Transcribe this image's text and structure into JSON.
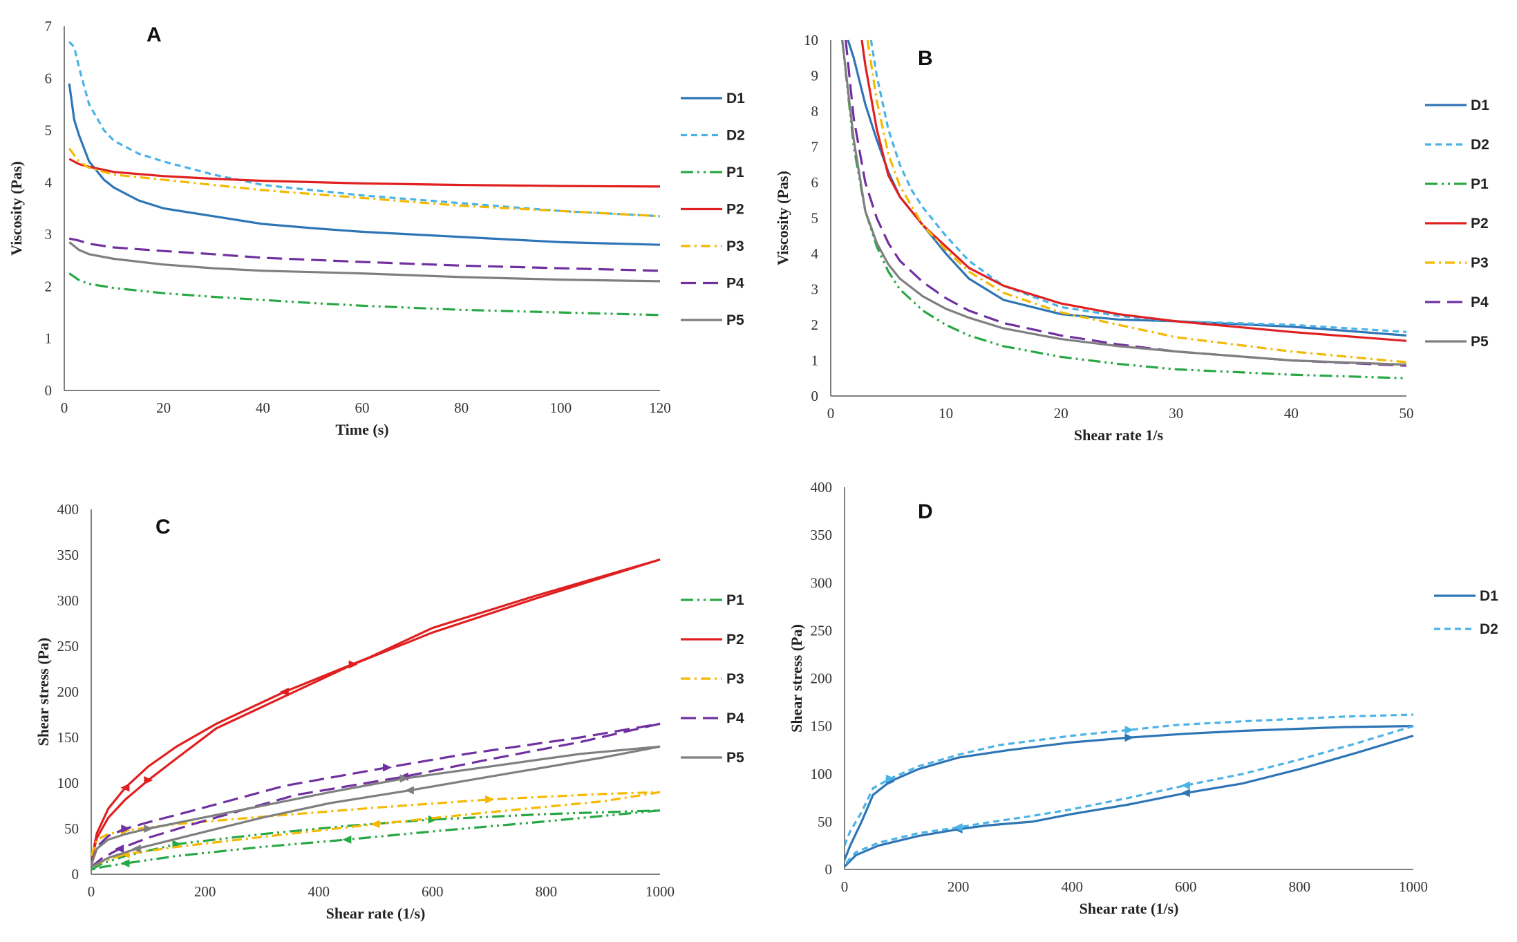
{
  "chart_data": [
    {
      "panel": "A",
      "type": "line",
      "xlabel": "Time (s)",
      "ylabel": "Viscosity (Pas)",
      "xlim": [
        0,
        120
      ],
      "ylim": [
        0,
        7
      ],
      "xticks": [
        "0",
        "20",
        "40",
        "60",
        "80",
        "100",
        "120"
      ],
      "yticks": [
        "0",
        "1",
        "2",
        "3",
        "4",
        "5",
        "6",
        "7"
      ],
      "legend_position": "right",
      "series": [
        {
          "name": "D1",
          "color": "#2e75b6",
          "dash": "solid",
          "x": [
            1,
            2,
            3,
            5,
            8,
            10,
            15,
            20,
            30,
            40,
            50,
            60,
            80,
            100,
            120
          ],
          "y": [
            5.9,
            5.2,
            4.9,
            4.4,
            4.05,
            3.9,
            3.65,
            3.5,
            3.35,
            3.2,
            3.12,
            3.05,
            2.95,
            2.85,
            2.8
          ]
        },
        {
          "name": "D2",
          "color": "#4ab3e6",
          "dash": "dashed",
          "x": [
            1,
            2,
            3,
            5,
            8,
            10,
            15,
            20,
            30,
            40,
            50,
            60,
            80,
            100,
            120
          ],
          "y": [
            6.7,
            6.6,
            6.2,
            5.5,
            5.0,
            4.8,
            4.55,
            4.4,
            4.15,
            3.95,
            3.85,
            3.75,
            3.6,
            3.45,
            3.35
          ]
        },
        {
          "name": "P1",
          "color": "#27a844",
          "dash": "dash-dot-dot",
          "x": [
            1,
            3,
            5,
            10,
            15,
            20,
            30,
            40,
            50,
            60,
            80,
            100,
            120
          ],
          "y": [
            2.25,
            2.12,
            2.05,
            1.97,
            1.92,
            1.87,
            1.8,
            1.74,
            1.68,
            1.63,
            1.55,
            1.5,
            1.45
          ]
        },
        {
          "name": "P2",
          "color": "#e02020",
          "dash": "solid",
          "x": [
            1,
            3,
            5,
            10,
            20,
            30,
            40,
            60,
            80,
            100,
            120
          ],
          "y": [
            4.45,
            4.35,
            4.3,
            4.2,
            4.12,
            4.07,
            4.03,
            3.98,
            3.95,
            3.93,
            3.92
          ]
        },
        {
          "name": "P3",
          "color": "#f5b800",
          "dash": "dash-dot",
          "x": [
            1,
            3,
            5,
            10,
            20,
            30,
            40,
            60,
            80,
            100,
            120
          ],
          "y": [
            4.65,
            4.4,
            4.28,
            4.15,
            4.05,
            3.95,
            3.85,
            3.7,
            3.55,
            3.45,
            3.35
          ]
        },
        {
          "name": "P4",
          "color": "#7030a0",
          "dash": "long-dash",
          "x": [
            1,
            3,
            5,
            10,
            20,
            30,
            40,
            60,
            80,
            100,
            120
          ],
          "y": [
            2.92,
            2.88,
            2.82,
            2.75,
            2.68,
            2.62,
            2.55,
            2.47,
            2.4,
            2.35,
            2.3
          ]
        },
        {
          "name": "P5",
          "color": "#7f7f7f",
          "dash": "solid",
          "x": [
            1,
            3,
            5,
            10,
            20,
            30,
            40,
            60,
            80,
            100,
            120
          ],
          "y": [
            2.85,
            2.7,
            2.62,
            2.53,
            2.42,
            2.35,
            2.3,
            2.25,
            2.18,
            2.13,
            2.1
          ]
        }
      ]
    },
    {
      "panel": "B",
      "type": "line",
      "xlabel": "Shear rate 1/s",
      "ylabel": "Viscosity (Pas)",
      "xlim": [
        0,
        50
      ],
      "ylim": [
        0,
        10
      ],
      "xticks": [
        "0",
        "10",
        "20",
        "30",
        "40",
        "50"
      ],
      "yticks": [
        "0",
        "1",
        "2",
        "3",
        "4",
        "5",
        "6",
        "7",
        "8",
        "9",
        "10"
      ],
      "legend_position": "right",
      "series": [
        {
          "name": "D1",
          "color": "#2e75b6",
          "dash": "solid",
          "x": [
            1.5,
            2,
            3,
            4,
            5,
            6,
            7,
            8,
            10,
            12,
            15,
            20,
            25,
            30,
            40,
            50
          ],
          "y": [
            10,
            9.5,
            8.2,
            7.2,
            6.3,
            5.6,
            5.2,
            4.8,
            4.0,
            3.3,
            2.7,
            2.3,
            2.15,
            2.1,
            1.95,
            1.7
          ]
        },
        {
          "name": "D2",
          "color": "#4ab3e6",
          "dash": "dashed",
          "x": [
            3.5,
            4,
            5,
            6,
            7,
            8,
            10,
            12,
            15,
            20,
            25,
            30,
            40,
            50
          ],
          "y": [
            10,
            9.0,
            7.5,
            6.5,
            5.8,
            5.3,
            4.5,
            3.8,
            3.1,
            2.5,
            2.25,
            2.1,
            2.0,
            1.8
          ]
        },
        {
          "name": "P1",
          "color": "#27a844",
          "dash": "dash-dot-dot",
          "x": [
            1,
            2,
            3,
            4,
            5,
            6,
            8,
            10,
            12,
            15,
            20,
            25,
            30,
            40,
            50
          ],
          "y": [
            10,
            7.0,
            5.2,
            4.2,
            3.5,
            3.0,
            2.4,
            2.0,
            1.7,
            1.4,
            1.1,
            0.9,
            0.75,
            0.6,
            0.5
          ]
        },
        {
          "name": "P2",
          "color": "#e02020",
          "dash": "solid",
          "x": [
            2.7,
            3,
            4,
            5,
            6,
            8,
            10,
            12,
            15,
            20,
            25,
            30,
            40,
            50
          ],
          "y": [
            10,
            9.3,
            7.5,
            6.2,
            5.6,
            4.8,
            4.2,
            3.6,
            3.1,
            2.6,
            2.3,
            2.1,
            1.8,
            1.55
          ]
        },
        {
          "name": "P3",
          "color": "#f5b800",
          "dash": "dash-dot",
          "x": [
            3.2,
            4,
            5,
            6,
            8,
            10,
            12,
            15,
            20,
            25,
            30,
            40,
            50
          ],
          "y": [
            10,
            8.3,
            6.8,
            5.9,
            4.8,
            4.1,
            3.5,
            2.9,
            2.35,
            2.0,
            1.65,
            1.25,
            0.95
          ]
        },
        {
          "name": "P4",
          "color": "#7030a0",
          "dash": "long-dash",
          "x": [
            1.3,
            2,
            3,
            4,
            5,
            6,
            8,
            10,
            12,
            15,
            20,
            25,
            30,
            40,
            50
          ],
          "y": [
            10,
            7.8,
            6.0,
            5.0,
            4.3,
            3.8,
            3.2,
            2.75,
            2.4,
            2.05,
            1.7,
            1.45,
            1.25,
            1.0,
            0.85
          ]
        },
        {
          "name": "P5",
          "color": "#7f7f7f",
          "dash": "solid",
          "x": [
            1,
            2,
            3,
            4,
            5,
            6,
            8,
            10,
            12,
            15,
            20,
            25,
            30,
            40,
            50
          ],
          "y": [
            10,
            7.2,
            5.2,
            4.3,
            3.7,
            3.3,
            2.8,
            2.45,
            2.2,
            1.9,
            1.6,
            1.4,
            1.25,
            1.0,
            0.88
          ]
        }
      ]
    },
    {
      "panel": "C",
      "type": "line",
      "xlabel": "Shear rate (1/s)",
      "ylabel": "Shear stress (Pa)",
      "xlim": [
        0,
        1000
      ],
      "ylim": [
        0,
        400
      ],
      "xticks": [
        "0",
        "200",
        "400",
        "600",
        "800",
        "1000"
      ],
      "yticks": [
        "0",
        "50",
        "100",
        "150",
        "200",
        "250",
        "300",
        "350",
        "400"
      ],
      "legend_position": "right",
      "series": [
        {
          "name": "P1",
          "color": "#27a844",
          "dash": "dash-dot-dot",
          "up": {
            "x": [
              0,
              20,
              60,
              150,
              300,
              450,
              600,
              800,
              1000
            ],
            "y": [
              5,
              12,
              20,
              33,
              44,
              53,
              60,
              66,
              70
            ]
          },
          "down": {
            "x": [
              1000,
              800,
              600,
              450,
              300,
              150,
              60,
              20,
              0
            ],
            "y": [
              70,
              58,
              47,
              38,
              30,
              20,
              12,
              8,
              5
            ]
          }
        },
        {
          "name": "P2",
          "color": "#e02020",
          "dash": "solid",
          "up": {
            "x": [
              0,
              10,
              30,
              60,
              100,
              150,
              220,
              340,
              460,
              600,
              780,
              1000
            ],
            "y": [
              15,
              40,
              62,
              82,
              103,
              127,
              160,
              195,
              230,
              265,
              302,
              345
            ]
          },
          "down": {
            "x": [
              1000,
              780,
              600,
              490,
              340,
              220,
              150,
              100,
              60,
              30,
              10,
              0
            ],
            "y": [
              345,
              305,
              270,
              238,
              200,
              165,
              140,
              118,
              95,
              72,
              45,
              15
            ]
          }
        },
        {
          "name": "P3",
          "color": "#f5b800",
          "dash": "dash-dot",
          "up": {
            "x": [
              0,
              10,
              30,
              60,
              150,
              300,
              500,
              700,
              900,
              1000
            ],
            "y": [
              20,
              38,
              44,
              48,
              55,
              63,
              73,
              82,
              88,
              90
            ]
          },
          "down": {
            "x": [
              1000,
              900,
              700,
              500,
              330,
              150,
              60,
              20,
              0
            ],
            "y": [
              90,
              80,
              68,
              55,
              43,
              30,
              22,
              14,
              8
            ]
          }
        },
        {
          "name": "P4",
          "color": "#7030a0",
          "dash": "long-dash",
          "up": {
            "x": [
              0,
              10,
              30,
              60,
              100,
              180,
              340,
              520,
              660,
              860,
              1000
            ],
            "y": [
              10,
              30,
              42,
              50,
              57,
              70,
              97,
              117,
              132,
              150,
              165
            ]
          },
          "down": {
            "x": [
              1000,
              860,
              700,
              550,
              360,
              190,
              100,
              50,
              20,
              0
            ],
            "y": [
              165,
              145,
              126,
              107,
              87,
              57,
              40,
              28,
              18,
              8
            ]
          }
        },
        {
          "name": "P5",
          "color": "#7f7f7f",
          "dash": "solid",
          "up": {
            "x": [
              0,
              10,
              30,
              60,
              100,
              180,
              300,
              420,
              550,
              700,
              860,
              1000
            ],
            "y": [
              10,
              28,
              38,
              44,
              50,
              60,
              75,
              90,
              105,
              118,
              132,
              140
            ]
          },
          "down": {
            "x": [
              1000,
              900,
              700,
              560,
              420,
              300,
              170,
              80,
              30,
              0
            ],
            "y": [
              140,
              128,
              107,
              92,
              78,
              62,
              42,
              28,
              18,
              8
            ]
          }
        }
      ]
    },
    {
      "panel": "D",
      "type": "line",
      "xlabel": "Shear rate (1/s)",
      "ylabel": "Shear stress (Pa)",
      "xlim": [
        0,
        1000
      ],
      "ylim": [
        0,
        400
      ],
      "xticks": [
        "0",
        "200",
        "400",
        "600",
        "800",
        "1000"
      ],
      "yticks": [
        "0",
        "50",
        "100",
        "150",
        "200",
        "250",
        "300",
        "350",
        "400"
      ],
      "legend_position": "right",
      "series": [
        {
          "name": "D1",
          "color": "#2e75b6",
          "dash": "solid",
          "up": {
            "x": [
              0,
              10,
              30,
              50,
              80,
              130,
              200,
              290,
              400,
              500,
              600,
              700,
              880,
              1000
            ],
            "y": [
              10,
              25,
              50,
              78,
              92,
              105,
              117,
              125,
              133,
              138,
              142,
              145,
              149,
              150
            ]
          },
          "down": {
            "x": [
              1000,
              900,
              800,
              700,
              600,
              500,
              400,
              330,
              250,
              200,
              130,
              60,
              20,
              0
            ],
            "y": [
              140,
              122,
              105,
              90,
              80,
              68,
              58,
              50,
              46,
              42,
              35,
              25,
              15,
              3
            ]
          }
        },
        {
          "name": "D2",
          "color": "#4ab3e6",
          "dash": "dashed",
          "up": {
            "x": [
              0,
              10,
              30,
              50,
              80,
              130,
              200,
              270,
              400,
              500,
              580,
              700,
              880,
              1000
            ],
            "y": [
              25,
              40,
              60,
              85,
              95,
              108,
              120,
              130,
              140,
              146,
              151,
              155,
              160,
              162
            ]
          },
          "down": {
            "x": [
              1000,
              900,
              800,
              700,
              600,
              500,
              400,
              330,
              250,
              200,
              130,
              60,
              20,
              0
            ],
            "y": [
              150,
              132,
              115,
              100,
              88,
              75,
              63,
              56,
              49,
              44,
              38,
              28,
              18,
              5
            ]
          }
        }
      ]
    }
  ]
}
